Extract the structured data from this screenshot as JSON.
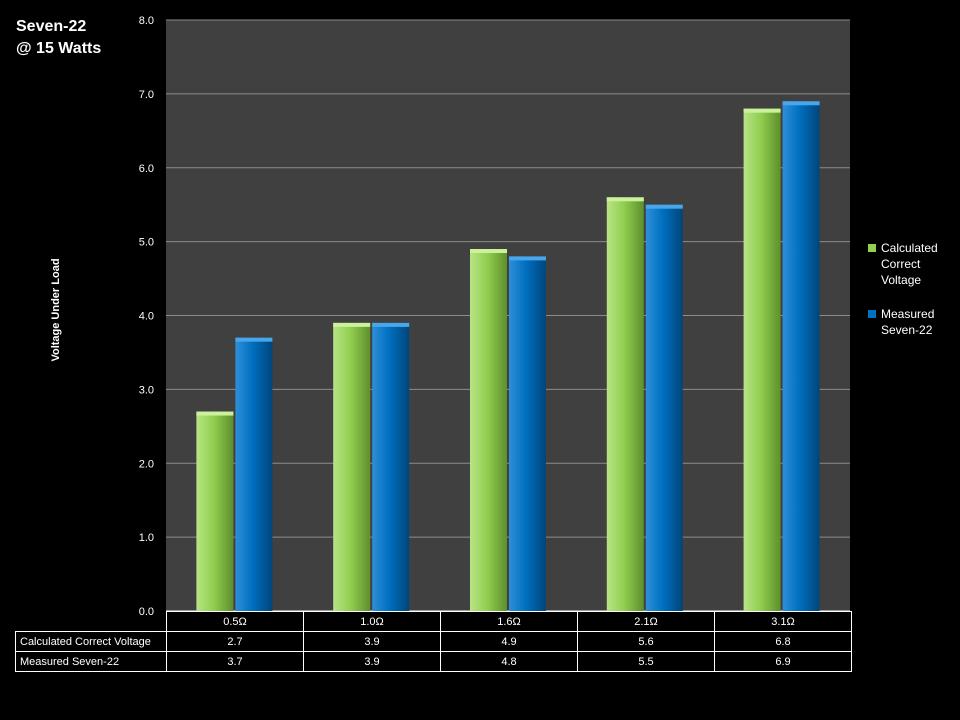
{
  "header": {
    "line1": "Seven-22",
    "line2": "@ 15 Watts"
  },
  "chart_data": {
    "type": "bar",
    "title": "Seven-22 @ 15 Watts",
    "xlabel": "",
    "ylabel": "Voltage Under Load",
    "ylim": [
      0,
      8
    ],
    "yticks": [
      "0.0",
      "1.0",
      "2.0",
      "3.0",
      "4.0",
      "5.0",
      "6.0",
      "7.0",
      "8.0"
    ],
    "categories": [
      "0.5Ω",
      "1.0Ω",
      "1.6Ω",
      "2.1Ω",
      "3.1Ω"
    ],
    "series": [
      {
        "name": "Calculated Correct Voltage",
        "legend_label": "Calculated Correct Voltage",
        "color": "#92d050",
        "values": [
          2.7,
          3.9,
          4.9,
          5.6,
          6.8
        ],
        "labels": [
          "2.7",
          "3.9",
          "4.9",
          "5.6",
          "6.8"
        ]
      },
      {
        "name": "Measured Seven-22",
        "legend_label": "Measured Seven-22",
        "color": "#0070c0",
        "values": [
          3.7,
          3.9,
          4.8,
          5.5,
          6.9
        ],
        "labels": [
          "3.7",
          "3.9",
          "4.8",
          "5.5",
          "6.9"
        ]
      }
    ],
    "grid": true,
    "legend_position": "right",
    "data_table": true,
    "plot_background": "#404040"
  }
}
